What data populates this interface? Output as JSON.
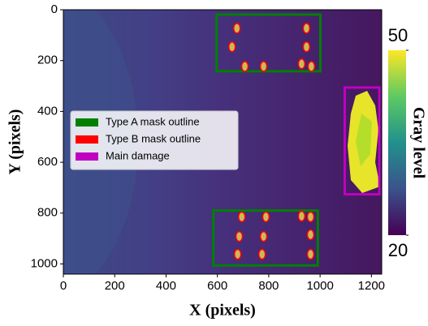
{
  "chart_data": {
    "type": "image",
    "xlabel": "X (pixels)",
    "ylabel": "Y (pixels)",
    "xlim": [
      0,
      1240
    ],
    "ylim": [
      1040,
      0
    ],
    "xticks": [
      0,
      200,
      400,
      600,
      800,
      1000,
      1200
    ],
    "yticks": [
      0,
      200,
      400,
      600,
      800,
      1000
    ],
    "colorbar": {
      "label": "Gray level",
      "lim": [
        20,
        50
      ],
      "ticks": [
        20,
        50
      ]
    },
    "series": [
      {
        "name": "Type A mask outline",
        "color": "#008000",
        "boxes": [
          [
            597,
            19,
            1001,
            242
          ],
          [
            584,
            790,
            991,
            1006
          ]
        ]
      },
      {
        "name": "Type B mask outline",
        "color": "#ff0000",
        "x": [
          676,
          947,
          657,
          947,
          707,
          780,
          928,
          966,
          695,
          789,
          928,
          963,
          685,
          780,
          963,
          679,
          774,
          963
        ],
        "y": [
          73,
          73,
          146,
          146,
          223,
          223,
          213,
          223,
          815,
          815,
          812,
          815,
          892,
          892,
          885,
          962,
          962,
          962
        ]
      },
      {
        "name": "Main damage",
        "color": "#c000c0",
        "boxes": [
          [
            1096,
            306,
            1231,
            726
          ]
        ]
      }
    ]
  }
}
